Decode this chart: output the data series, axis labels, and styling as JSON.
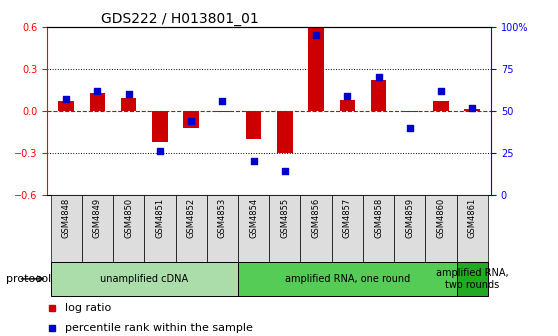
{
  "title": "GDS222 / H013801_01",
  "samples": [
    "GSM4848",
    "GSM4849",
    "GSM4850",
    "GSM4851",
    "GSM4852",
    "GSM4853",
    "GSM4854",
    "GSM4855",
    "GSM4856",
    "GSM4857",
    "GSM4858",
    "GSM4859",
    "GSM4860",
    "GSM4861"
  ],
  "log_ratio": [
    0.07,
    0.13,
    0.09,
    -0.22,
    -0.12,
    -0.01,
    -0.2,
    -0.3,
    0.6,
    0.08,
    0.22,
    -0.01,
    0.07,
    0.01
  ],
  "percentile": [
    57,
    62,
    60,
    26,
    44,
    56,
    20,
    14,
    95,
    59,
    70,
    40,
    62,
    52
  ],
  "ylim_left": [
    -0.6,
    0.6
  ],
  "ylim_right": [
    0,
    100
  ],
  "yticks_left": [
    -0.6,
    -0.3,
    0.0,
    0.3,
    0.6
  ],
  "yticks_right": [
    0,
    25,
    50,
    75,
    100
  ],
  "ytick_labels_right": [
    "0",
    "25",
    "50",
    "75",
    "100%"
  ],
  "bar_color": "#cc0000",
  "point_color": "#0000cc",
  "zero_line_color": "#cc0000",
  "protocols": [
    {
      "label": "unamplified cDNA",
      "start": 0,
      "end": 5,
      "color": "#aaddaa"
    },
    {
      "label": "amplified RNA, one round",
      "start": 6,
      "end": 12,
      "color": "#55cc55"
    },
    {
      "label": "amplified RNA,\ntwo rounds",
      "start": 13,
      "end": 13,
      "color": "#22aa22"
    }
  ],
  "xlabel_protocol": "protocol",
  "legend_log": "log ratio",
  "legend_pct": "percentile rank within the sample",
  "bar_width": 0.5
}
